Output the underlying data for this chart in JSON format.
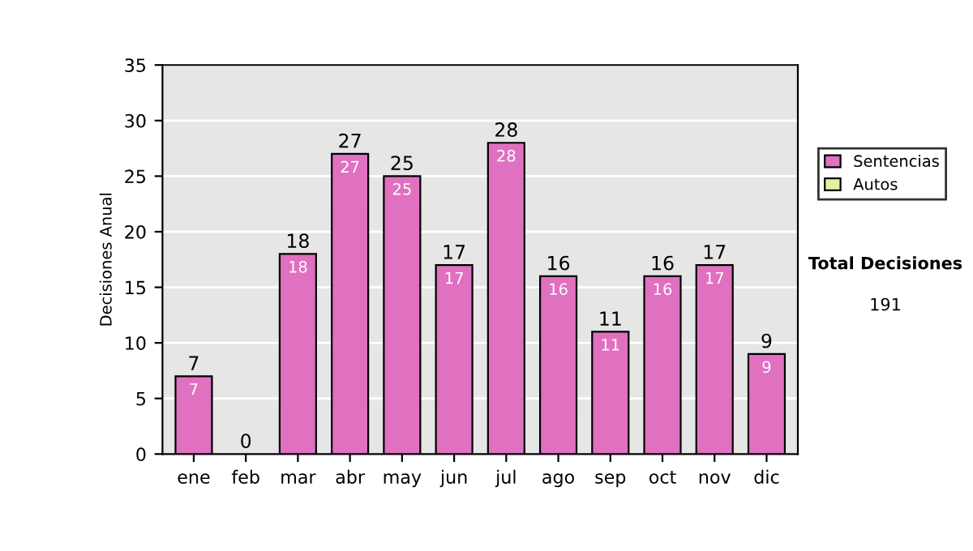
{
  "chart_data": {
    "type": "bar",
    "stacked": true,
    "ylabel": "Decisiones Anual",
    "categories": [
      "ene",
      "feb",
      "mar",
      "abr",
      "may",
      "jun",
      "jul",
      "ago",
      "sep",
      "oct",
      "nov",
      "dic"
    ],
    "series": [
      {
        "name": "Sentencias",
        "color": "#e070c0",
        "values": [
          7,
          0,
          18,
          27,
          25,
          17,
          28,
          16,
          11,
          16,
          17,
          9
        ],
        "value_labels": [
          "7",
          null,
          "18",
          "27",
          "25",
          "17",
          "28",
          "16",
          "11",
          "16",
          "17",
          "9"
        ]
      },
      {
        "name": "Autos",
        "color": "#e8f0a0",
        "values": [
          0,
          0,
          0,
          0,
          0,
          0,
          0,
          0,
          0,
          0,
          0,
          0
        ]
      }
    ],
    "totals": [
      "7",
      "0",
      "18",
      "27",
      "25",
      "17",
      "28",
      "16",
      "11",
      "16",
      "17",
      "9"
    ],
    "ylim": [
      0,
      35
    ],
    "yticks": [
      0,
      5,
      10,
      15,
      20,
      25,
      30,
      35
    ],
    "grid": "y",
    "legend": "right",
    "annotations": [
      "Total Decisiones",
      "191"
    ]
  }
}
